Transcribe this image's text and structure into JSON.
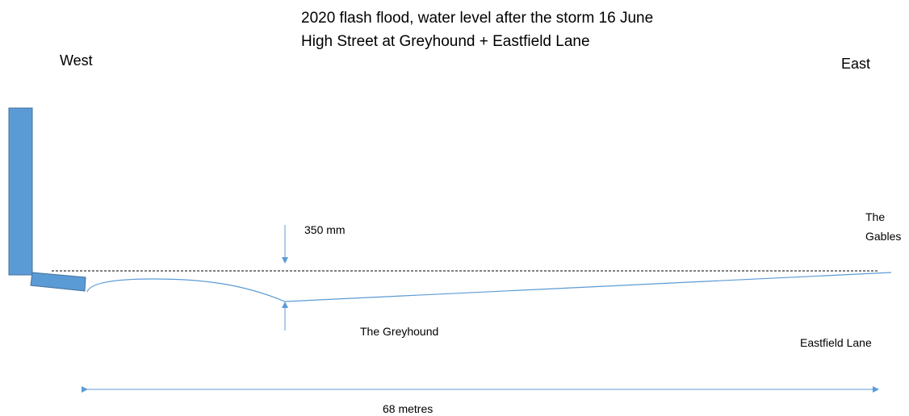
{
  "title": {
    "line1": "2020 flash flood, water level after the storm 16 June",
    "line2": "High Street at Greyhound + Eastfield Lane"
  },
  "compass": {
    "west": "West",
    "east": "East"
  },
  "labels": {
    "depth": "350 mm",
    "greyhound": "The Greyhound",
    "gables_line1": "The",
    "gables_line2": "Gables",
    "eastfield": "Eastfield Lane",
    "distance": "68 metres"
  },
  "colors": {
    "structure": "#5b9bd5",
    "structure_edge": "#41719c",
    "water_line": "#5b9bd5",
    "level_line": "#000000"
  }
}
